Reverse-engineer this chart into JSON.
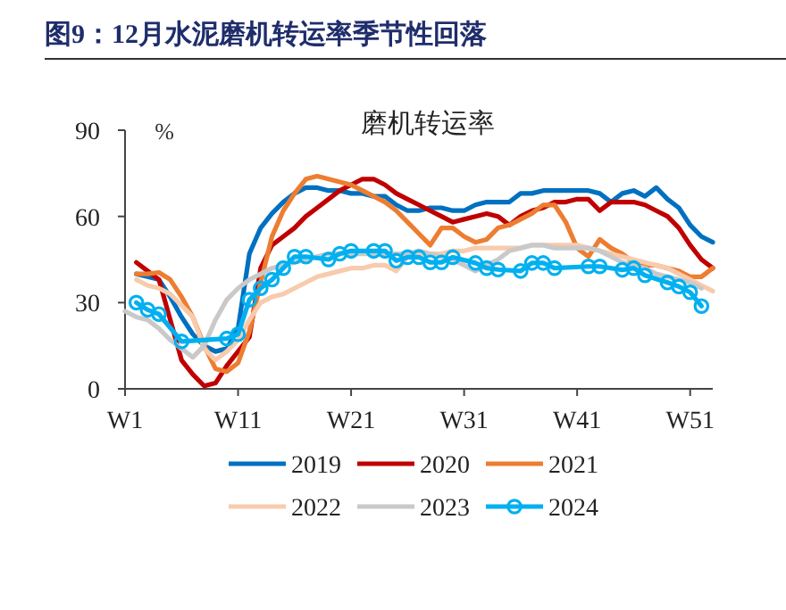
{
  "chart_data": {
    "type": "line",
    "title": "图9：12月水泥磨机转运率季节性回落",
    "subtitle": "磨机转运率",
    "ylabel": "%",
    "categories": [
      "W1",
      null,
      null,
      null,
      null,
      null,
      null,
      null,
      null,
      null,
      "W11",
      null,
      null,
      null,
      null,
      null,
      null,
      null,
      null,
      null,
      "W21",
      null,
      null,
      null,
      null,
      null,
      null,
      null,
      null,
      null,
      "W31",
      null,
      null,
      null,
      null,
      null,
      null,
      null,
      null,
      null,
      "W41",
      null,
      null,
      null,
      null,
      null,
      null,
      null,
      null,
      null,
      "W51",
      null,
      null
    ],
    "ylim": [
      0,
      90
    ],
    "yticks": [
      0,
      30,
      60,
      90
    ],
    "grid": false,
    "legend": "bottom",
    "series": [
      {
        "name": "2019",
        "color": "#0070c0",
        "values": [
          null,
          40,
          39,
          38,
          32,
          25,
          19,
          15,
          13,
          14,
          21,
          47,
          56,
          61,
          65,
          68,
          70,
          70,
          69,
          69,
          68,
          68,
          67,
          67,
          64,
          62,
          62,
          63,
          63,
          62,
          62,
          64,
          65,
          65,
          65,
          68,
          68,
          69,
          69,
          69,
          69,
          69,
          68,
          65,
          68,
          69,
          67,
          70,
          66,
          63,
          57,
          53,
          51
        ]
      },
      {
        "name": "2020",
        "color": "#c00000",
        "values": [
          null,
          44,
          41,
          38,
          24,
          10,
          5,
          1,
          2,
          8,
          13,
          18,
          42,
          50,
          53,
          56,
          60,
          63,
          66,
          69,
          71,
          73,
          73,
          71,
          68,
          66,
          64,
          62,
          60,
          58,
          59,
          60,
          61,
          60,
          57,
          60,
          62,
          63,
          65,
          65,
          66,
          66,
          62,
          65,
          65,
          65,
          64,
          62,
          60,
          56,
          50,
          45,
          42
        ]
      },
      {
        "name": "2021",
        "color": "#ed7d31",
        "values": [
          null,
          40,
          40,
          40.5,
          38,
          32,
          25,
          15,
          7,
          6,
          9,
          20,
          37,
          53,
          62,
          68,
          73,
          74,
          73,
          72,
          71,
          69,
          67,
          65,
          62,
          58,
          54,
          50,
          56,
          56,
          53,
          51,
          52,
          56,
          57,
          59,
          61,
          64,
          64,
          58,
          49,
          46,
          52,
          49,
          47,
          44,
          43,
          43,
          42,
          41,
          39,
          39,
          42
        ]
      },
      {
        "name": "2022",
        "color": "#f8cbad",
        "values": [
          null,
          38,
          36,
          35,
          33,
          29,
          25,
          14,
          10,
          13,
          17,
          24,
          30,
          32,
          33,
          35,
          37,
          39,
          40,
          41,
          42,
          42,
          43,
          43,
          41,
          46,
          47,
          47,
          47,
          48,
          48,
          49,
          49,
          49,
          49,
          49,
          50,
          50,
          50,
          50,
          50,
          49,
          48,
          47,
          46,
          45,
          44,
          43,
          42,
          40,
          38,
          36,
          34
        ]
      },
      {
        "name": "2023",
        "color": "#c9c9c9",
        "values": [
          27,
          25,
          24,
          21,
          17,
          14,
          11,
          15,
          24,
          31,
          35,
          38,
          40,
          42,
          43,
          null,
          null,
          46,
          47,
          47,
          null,
          47,
          47,
          null,
          47,
          47,
          48,
          47,
          46,
          45,
          43,
          41,
          43,
          45,
          48,
          49,
          50,
          50,
          49,
          49,
          49,
          49,
          48,
          46,
          44,
          43,
          42,
          40,
          39,
          38,
          37,
          35,
          null
        ]
      },
      {
        "name": "2024",
        "color": "#00b0f0",
        "marker": "circle",
        "values": [
          null,
          30,
          27.5,
          26,
          null,
          16.5,
          null,
          null,
          null,
          17.5,
          19,
          31,
          35,
          38,
          42,
          46,
          46,
          null,
          45,
          47,
          48,
          null,
          48,
          48,
          44.6,
          45.8,
          45.8,
          44,
          44,
          45.8,
          null,
          43.8,
          42,
          41.5,
          null,
          41,
          43.8,
          43.8,
          42,
          null,
          null,
          42.6,
          42.6,
          null,
          41.4,
          42,
          39.5,
          null,
          37,
          35.6,
          33.6,
          28.8,
          null
        ]
      }
    ]
  }
}
